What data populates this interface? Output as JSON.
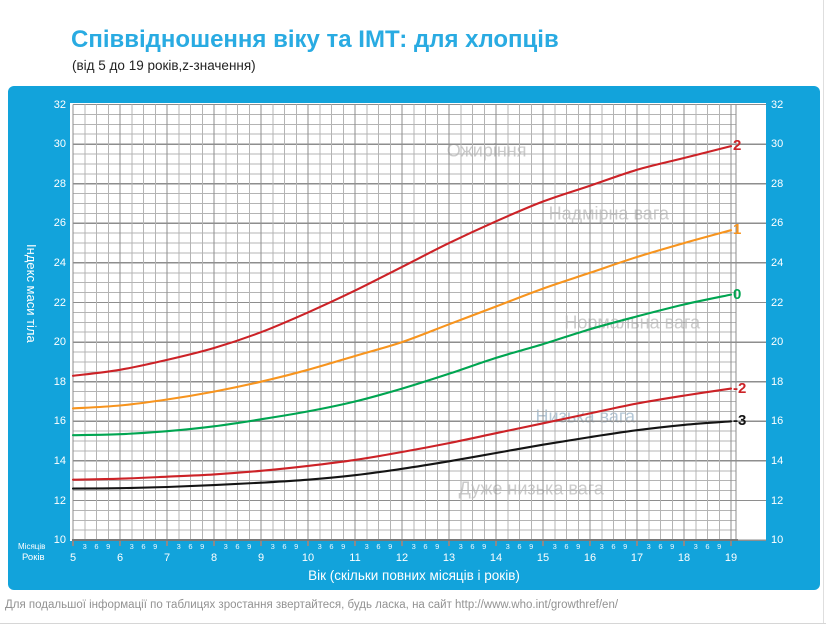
{
  "page": {
    "title": "Співвідношення віку та ІМТ: для хлопців",
    "subtitle": "(від 5 до 19 років,z-значення)",
    "footer": "Для подальшої інформації по таблицях зростання звертайтеся, будь ласка, на сайт  http://www.who.int/growthref/en/"
  },
  "colors": {
    "title_blue": "#29abe2",
    "panel_blue": "#12a3db",
    "grid_minor": "#b4b4b4",
    "grid_major": "#8e8e8e",
    "axis_line": "#787878",
    "curve_red": "#cc2227",
    "curve_orange": "#f7941e",
    "curve_green": "#00a551",
    "curve_black": "#141414",
    "zone_gray": "#cbcbcb",
    "zone_blue": "#b4c7d6"
  },
  "chart_data": {
    "type": "line",
    "title": "Співвідношення віку та ІМТ: для хлопців",
    "subtitle": "(від 5 до 19 років,z-значення)",
    "xlabel": "Вік (скільки повних місяців і років)",
    "ylabel": "Індекс маси тіла",
    "xlim": [
      5,
      19
    ],
    "ylim": [
      10,
      32
    ],
    "grid": true,
    "legend_position": "right-edge-labels",
    "x_axis_rows": {
      "months_label": "Місяців",
      "years_label": "Років",
      "month_ticks": [
        "3",
        "6",
        "9"
      ]
    },
    "x_year_ticks": [
      5,
      6,
      7,
      8,
      9,
      10,
      11,
      12,
      13,
      14,
      15,
      16,
      17,
      18,
      19
    ],
    "y_ticks": [
      32,
      30,
      28,
      26,
      24,
      22,
      20,
      18,
      16,
      14,
      12,
      10
    ],
    "x": [
      5,
      6,
      7,
      8,
      9,
      10,
      11,
      12,
      13,
      14,
      15,
      16,
      17,
      18,
      19
    ],
    "series": [
      {
        "name": "z+2",
        "label": "2",
        "color": "#cc2227",
        "values": [
          18.3,
          18.6,
          19.1,
          19.7,
          20.5,
          21.5,
          22.6,
          23.8,
          25.0,
          26.1,
          27.1,
          27.9,
          28.7,
          29.3,
          29.9
        ]
      },
      {
        "name": "z+1",
        "label": "1",
        "color": "#f7941e",
        "values": [
          16.65,
          16.8,
          17.1,
          17.5,
          18.0,
          18.6,
          19.3,
          20.0,
          20.9,
          21.8,
          22.7,
          23.5,
          24.3,
          25.0,
          25.65
        ]
      },
      {
        "name": "z0",
        "label": "0",
        "color": "#00a551",
        "values": [
          15.3,
          15.35,
          15.5,
          15.75,
          16.1,
          16.5,
          17.0,
          17.65,
          18.4,
          19.2,
          19.9,
          20.65,
          21.3,
          21.9,
          22.4
        ]
      },
      {
        "name": "z-2",
        "label": "-2",
        "color": "#cc2227",
        "values": [
          13.05,
          13.1,
          13.2,
          13.32,
          13.5,
          13.75,
          14.05,
          14.45,
          14.9,
          15.4,
          15.9,
          16.4,
          16.9,
          17.3,
          17.65
        ]
      },
      {
        "name": "z-3",
        "label": "-3",
        "color": "#141414",
        "values": [
          12.6,
          12.62,
          12.68,
          12.78,
          12.9,
          13.05,
          13.28,
          13.6,
          13.98,
          14.4,
          14.82,
          15.2,
          15.55,
          15.82,
          16.0
        ]
      }
    ],
    "zones": [
      {
        "label": "Ожиріння",
        "x": 13.8,
        "y": 29.65,
        "color": "#cbcbcb"
      },
      {
        "label": "Надмірна вага",
        "x": 16.4,
        "y": 26.45,
        "color": "#cbcbcb"
      },
      {
        "label": "Нормальна вага",
        "x": 16.9,
        "y": 20.95,
        "color": "#cbcbcb"
      },
      {
        "label": "Низька вага",
        "x": 15.9,
        "y": 16.2,
        "color": "#b4c7d6"
      },
      {
        "label": "Дуже низька вага",
        "x": 14.75,
        "y": 12.6,
        "color": "#cbcbcb"
      }
    ]
  }
}
